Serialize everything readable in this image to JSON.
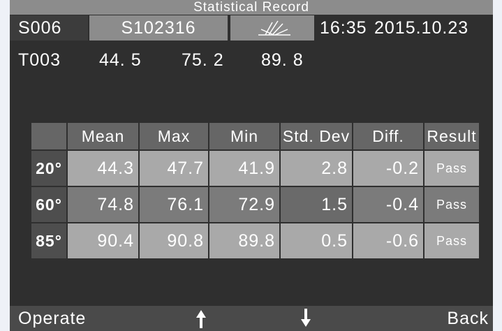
{
  "header": {
    "title": "Statistical Record"
  },
  "status": {
    "sample": "S006",
    "id": "S102316",
    "time": "16:35",
    "date": "2015.10.23"
  },
  "readings": {
    "label": "T003",
    "values": [
      "44. 5",
      "75. 2",
      "89. 8"
    ]
  },
  "table": {
    "columns": [
      "Mean",
      "Max",
      "Min",
      "Std. Dev",
      "Diff.",
      "Result"
    ],
    "rows": [
      {
        "angle": "20°",
        "cells": [
          "44.3",
          "47.7",
          "41.9",
          "2.8",
          "-0.2",
          "Pass"
        ]
      },
      {
        "angle": "60°",
        "cells": [
          "74.8",
          "76.1",
          "72.9",
          "1.5",
          "-0.4",
          "Pass"
        ]
      },
      {
        "angle": "85°",
        "cells": [
          "90.4",
          "90.8",
          "89.8",
          "0.5",
          "-0.6",
          "Pass"
        ]
      }
    ]
  },
  "footer": {
    "left": "Operate",
    "right": "Back"
  }
}
